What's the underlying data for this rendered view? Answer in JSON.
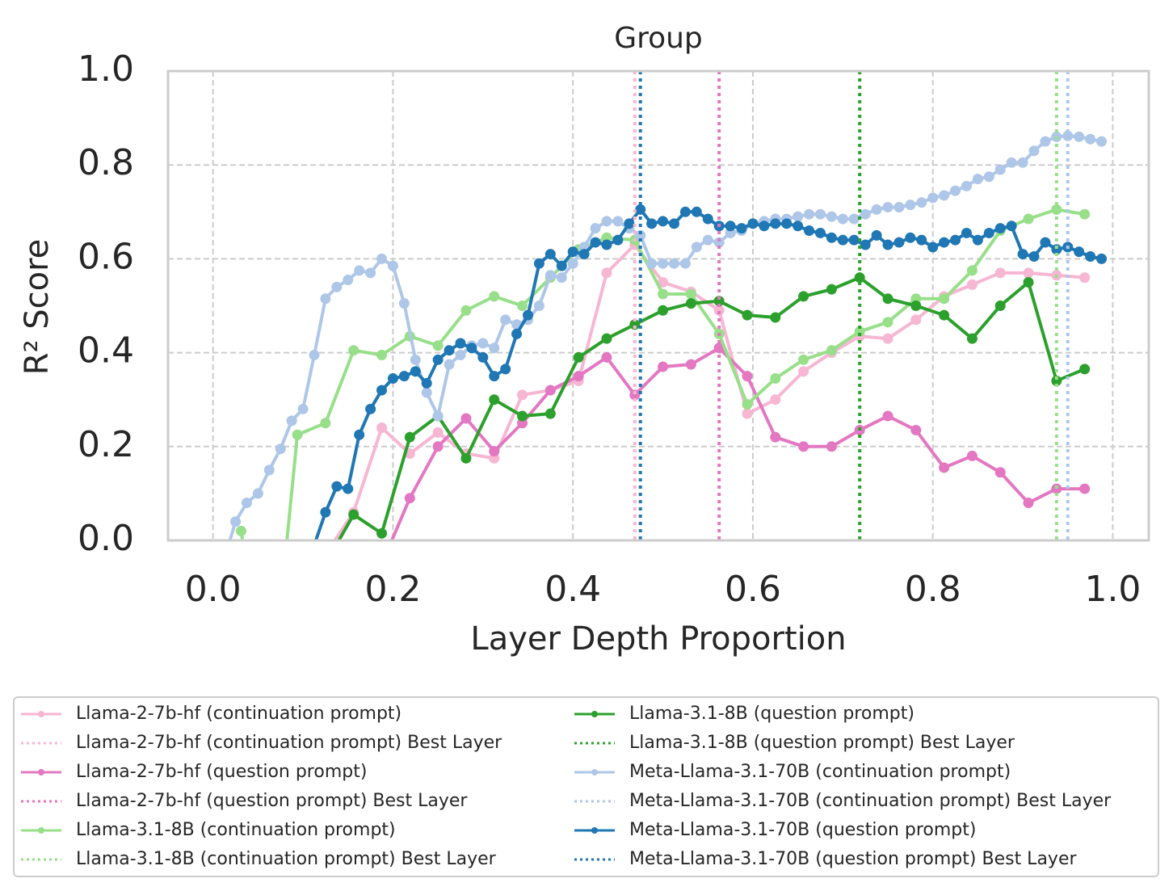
{
  "chart_data": {
    "type": "line",
    "title": "Group",
    "x_label": "Layer Depth Proportion",
    "y_label": "R² Score",
    "xlim": [
      -0.05,
      1.04
    ],
    "ylim": [
      0,
      1
    ],
    "grid": true,
    "xticks": [
      {
        "value": 0,
        "label": "0.0"
      },
      {
        "value": 0.2,
        "label": "0.2"
      },
      {
        "value": 0.4,
        "label": "0.4"
      },
      {
        "value": 0.6,
        "label": "0.6"
      },
      {
        "value": 0.8,
        "label": "0.8"
      },
      {
        "value": 1,
        "label": "1.0"
      }
    ],
    "yticks": [
      {
        "value": 0,
        "label": "0.0"
      },
      {
        "value": 0.2,
        "label": "0.2"
      },
      {
        "value": 0.4,
        "label": "0.4"
      },
      {
        "value": 0.6,
        "label": "0.6"
      },
      {
        "value": 0.8,
        "label": "0.8"
      },
      {
        "value": 1,
        "label": "1.0"
      }
    ],
    "series": [
      {
        "name": "Llama-2-7b-hf (continuation prompt)",
        "color": "#f7b6d2",
        "best_name": "Llama-2-7b-hf (continuation prompt) Best Layer",
        "best_x": 0.46875,
        "x": [
          0.125,
          0.15625,
          0.1875,
          0.21875,
          0.25,
          0.28125,
          0.3125,
          0.34375,
          0.375,
          0.40625,
          0.4375,
          0.46875,
          0.5,
          0.53125,
          0.5625,
          0.59375,
          0.625,
          0.65625,
          0.6875,
          0.71875,
          0.75,
          0.78125,
          0.8125,
          0.84375,
          0.875,
          0.90625,
          0.9375,
          0.96875
        ],
        "values": [
          -0.03,
          0.06,
          0.24,
          0.185,
          0.23,
          0.185,
          0.175,
          0.31,
          0.32,
          0.34,
          0.57,
          0.63,
          0.55,
          0.53,
          0.49,
          0.27,
          0.3,
          0.36,
          0.4,
          0.435,
          0.43,
          0.47,
          0.52,
          0.545,
          0.57,
          0.57,
          0.565,
          0.56
        ]
      },
      {
        "name": "Llama-2-7b-hf (question prompt)",
        "color": "#e377c2",
        "best_name": "Llama-2-7b-hf (question prompt) Best Layer",
        "best_x": 0.5625,
        "x": [
          0.1875,
          0.21875,
          0.25,
          0.28125,
          0.3125,
          0.34375,
          0.375,
          0.40625,
          0.4375,
          0.46875,
          0.5,
          0.53125,
          0.5625,
          0.59375,
          0.625,
          0.65625,
          0.6875,
          0.71875,
          0.75,
          0.78125,
          0.8125,
          0.84375,
          0.875,
          0.90625,
          0.9375,
          0.96875
        ],
        "values": [
          -0.05,
          0.09,
          0.2,
          0.26,
          0.19,
          0.25,
          0.32,
          0.35,
          0.39,
          0.31,
          0.37,
          0.375,
          0.41,
          0.35,
          0.22,
          0.2,
          0.2,
          0.235,
          0.265,
          0.235,
          0.155,
          0.18,
          0.145,
          0.08,
          0.11,
          0.11
        ]
      },
      {
        "name": "Llama-3.1-8B (continuation prompt)",
        "color": "#98df8a",
        "best_name": "Llama-3.1-8B (continuation prompt) Best Layer",
        "best_x": 0.9375,
        "x": [
          0.03125,
          0.0625,
          0.09375,
          0.125,
          0.15625,
          0.1875,
          0.21875,
          0.25,
          0.28125,
          0.3125,
          0.34375,
          0.375,
          0.40625,
          0.4375,
          0.46875,
          0.5,
          0.53125,
          0.5625,
          0.59375,
          0.625,
          0.65625,
          0.6875,
          0.71875,
          0.75,
          0.78125,
          0.8125,
          0.84375,
          0.875,
          0.90625,
          0.9375,
          0.96875
        ],
        "values": [
          0.02,
          -0.38,
          0.225,
          0.25,
          0.405,
          0.395,
          0.435,
          0.415,
          0.49,
          0.52,
          0.5,
          0.56,
          0.62,
          0.645,
          0.64,
          0.525,
          0.525,
          0.44,
          0.29,
          0.345,
          0.385,
          0.405,
          0.445,
          0.465,
          0.515,
          0.515,
          0.575,
          0.66,
          0.685,
          0.705,
          0.695
        ]
      },
      {
        "name": "Llama-3.1-8B (question prompt)",
        "color": "#2ca02c",
        "best_name": "Llama-3.1-8B (question prompt) Best Layer",
        "best_x": 0.71875,
        "x": [
          0.125,
          0.15625,
          0.1875,
          0.21875,
          0.25,
          0.28125,
          0.3125,
          0.34375,
          0.375,
          0.40625,
          0.4375,
          0.46875,
          0.5,
          0.53125,
          0.5625,
          0.59375,
          0.625,
          0.65625,
          0.6875,
          0.71875,
          0.75,
          0.78125,
          0.8125,
          0.84375,
          0.875,
          0.90625,
          0.9375,
          0.96875
        ],
        "values": [
          -0.05,
          0.055,
          0.015,
          0.22,
          0.265,
          0.175,
          0.3,
          0.265,
          0.27,
          0.39,
          0.43,
          0.46,
          0.49,
          0.505,
          0.51,
          0.48,
          0.475,
          0.52,
          0.535,
          0.56,
          0.515,
          0.5,
          0.48,
          0.43,
          0.5,
          0.55,
          0.34,
          0.365
        ]
      },
      {
        "name": "Meta-Llama-3.1-70B (continuation prompt)",
        "color": "#aec7e8",
        "best_name": "Meta-Llama-3.1-70B (continuation prompt) Best Layer",
        "best_x": 0.95,
        "x": [
          0.0125,
          0.025,
          0.0375,
          0.05,
          0.0625,
          0.075,
          0.0875,
          0.1,
          0.1125,
          0.125,
          0.1375,
          0.15,
          0.1625,
          0.175,
          0.1875,
          0.2,
          0.2125,
          0.225,
          0.2375,
          0.25,
          0.2625,
          0.275,
          0.2875,
          0.3,
          0.3125,
          0.325,
          0.3375,
          0.35,
          0.3625,
          0.375,
          0.3875,
          0.4,
          0.4125,
          0.425,
          0.4375,
          0.45,
          0.4625,
          0.475,
          0.4875,
          0.5,
          0.5125,
          0.525,
          0.5375,
          0.55,
          0.5625,
          0.575,
          0.5875,
          0.6,
          0.6125,
          0.625,
          0.6375,
          0.65,
          0.6625,
          0.675,
          0.6875,
          0.7,
          0.7125,
          0.725,
          0.7375,
          0.75,
          0.7625,
          0.775,
          0.7875,
          0.8,
          0.8125,
          0.825,
          0.8375,
          0.85,
          0.8625,
          0.875,
          0.8875,
          0.9,
          0.9125,
          0.925,
          0.9375,
          0.95,
          0.9625,
          0.975,
          0.9875
        ],
        "values": [
          -0.04,
          0.04,
          0.08,
          0.1,
          0.15,
          0.195,
          0.255,
          0.28,
          0.395,
          0.515,
          0.54,
          0.555,
          0.575,
          0.57,
          0.6,
          0.585,
          0.505,
          0.385,
          0.315,
          0.265,
          0.375,
          0.395,
          0.415,
          0.42,
          0.41,
          0.47,
          0.46,
          0.47,
          0.5,
          0.565,
          0.56,
          0.59,
          0.625,
          0.665,
          0.68,
          0.68,
          0.665,
          0.65,
          0.59,
          0.59,
          0.59,
          0.59,
          0.625,
          0.64,
          0.635,
          0.655,
          0.66,
          0.675,
          0.68,
          0.685,
          0.685,
          0.69,
          0.695,
          0.695,
          0.69,
          0.685,
          0.685,
          0.695,
          0.705,
          0.71,
          0.71,
          0.715,
          0.72,
          0.73,
          0.735,
          0.745,
          0.755,
          0.77,
          0.775,
          0.79,
          0.805,
          0.805,
          0.83,
          0.85,
          0.86,
          0.862,
          0.86,
          0.855,
          0.85
        ]
      },
      {
        "name": "Meta-Llama-3.1-70B (question prompt)",
        "color": "#1f77b4",
        "best_name": "Meta-Llama-3.1-70B (question prompt) Best Layer",
        "best_x": 0.475,
        "x": [
          0.1125,
          0.125,
          0.1375,
          0.15,
          0.1625,
          0.175,
          0.1875,
          0.2,
          0.2125,
          0.225,
          0.2375,
          0.25,
          0.2625,
          0.275,
          0.2875,
          0.3,
          0.3125,
          0.325,
          0.3375,
          0.35,
          0.3625,
          0.375,
          0.3875,
          0.4,
          0.4125,
          0.425,
          0.4375,
          0.45,
          0.4625,
          0.475,
          0.4875,
          0.5,
          0.5125,
          0.525,
          0.5375,
          0.55,
          0.5625,
          0.575,
          0.5875,
          0.6,
          0.6125,
          0.625,
          0.6375,
          0.65,
          0.6625,
          0.675,
          0.6875,
          0.7,
          0.7125,
          0.725,
          0.7375,
          0.75,
          0.7625,
          0.775,
          0.7875,
          0.8,
          0.8125,
          0.825,
          0.8375,
          0.85,
          0.8625,
          0.875,
          0.8875,
          0.9,
          0.9125,
          0.925,
          0.9375,
          0.95,
          0.9625,
          0.975,
          0.9875
        ],
        "values": [
          -0.01,
          0.06,
          0.115,
          0.11,
          0.225,
          0.28,
          0.32,
          0.345,
          0.35,
          0.36,
          0.335,
          0.385,
          0.405,
          0.42,
          0.41,
          0.39,
          0.35,
          0.365,
          0.44,
          0.48,
          0.59,
          0.61,
          0.585,
          0.615,
          0.61,
          0.635,
          0.63,
          0.64,
          0.675,
          0.705,
          0.675,
          0.68,
          0.675,
          0.7,
          0.7,
          0.685,
          0.67,
          0.67,
          0.665,
          0.675,
          0.67,
          0.675,
          0.675,
          0.67,
          0.66,
          0.655,
          0.645,
          0.64,
          0.64,
          0.63,
          0.65,
          0.63,
          0.635,
          0.645,
          0.64,
          0.625,
          0.635,
          0.64,
          0.655,
          0.64,
          0.655,
          0.665,
          0.67,
          0.61,
          0.605,
          0.635,
          0.62,
          0.625,
          0.615,
          0.605,
          0.6
        ]
      }
    ]
  }
}
